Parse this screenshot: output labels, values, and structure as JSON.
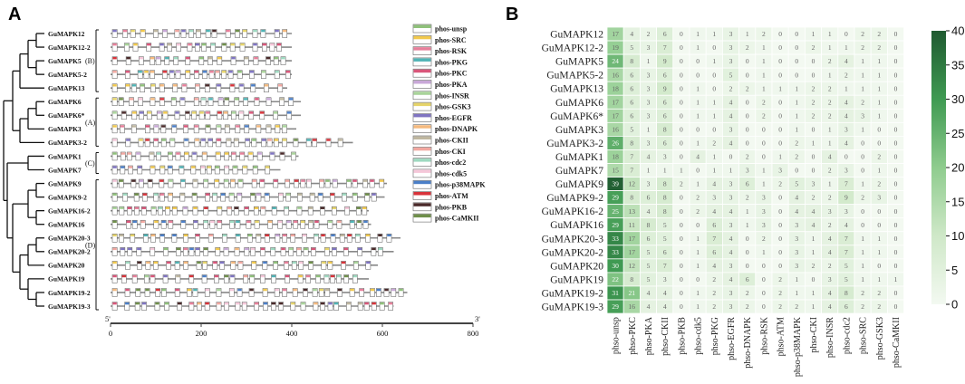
{
  "panel_a": {
    "letter": "A",
    "genes": [
      "GuMAPK12",
      "GuMAPK12-2",
      "GuMAPK5",
      "GuMAPK5-2",
      "GuMAPK13",
      "GuMAPK6",
      "GuMAPK6*",
      "GuMAPK3",
      "GuMAPK3-2",
      "GuMAPK1",
      "GuMAPK7",
      "GuMAPK9",
      "GuMAPK9-2",
      "GuMAPK16-2",
      "GuMAPK16",
      "GuMAPK20-3",
      "GuMAPK20-2",
      "GuMAPK20",
      "GuMAPK19",
      "GuMAPK19-2",
      "GuMAPK19-3"
    ],
    "lengths": [
      400,
      400,
      400,
      400,
      390,
      420,
      420,
      410,
      535,
      415,
      375,
      610,
      605,
      570,
      575,
      640,
      625,
      590,
      570,
      655,
      625
    ],
    "clades": [
      {
        "label": "(B)",
        "from": 0,
        "to": 4
      },
      {
        "label": "(A)",
        "from": 5,
        "to": 8
      },
      {
        "label": "(C)",
        "from": 9,
        "to": 10
      },
      {
        "label": "(D)",
        "from": 11,
        "to": 20
      }
    ],
    "legend": [
      {
        "label": "phos-unsp",
        "color": "#8fc17a"
      },
      {
        "label": "phos-SRC",
        "color": "#f2c94c"
      },
      {
        "label": "phos-RSK",
        "color": "#e77f9a"
      },
      {
        "label": "phos-PKG",
        "color": "#4fb3b5"
      },
      {
        "label": "phos-PKC",
        "color": "#d9567a"
      },
      {
        "label": "phos-PKA",
        "color": "#c9a8d8"
      },
      {
        "label": "phos-INSR",
        "color": "#a9d49a"
      },
      {
        "label": "phos-GSK3",
        "color": "#e6d46a"
      },
      {
        "label": "phos-EGFR",
        "color": "#7f74c2"
      },
      {
        "label": "phos-DNAPK",
        "color": "#f4b97e"
      },
      {
        "label": "phos-CKII",
        "color": "#bfb7a0"
      },
      {
        "label": "phos-CKI",
        "color": "#f2a7a0"
      },
      {
        "label": "phos-cdc2",
        "color": "#9ed9c0"
      },
      {
        "label": "phos-cdk5",
        "color": "#f5c7d9"
      },
      {
        "label": "phos-p38MAPK",
        "color": "#4b7fc8"
      },
      {
        "label": "phos-ATM",
        "color": "#d8333a"
      },
      {
        "label": "phos-PKB",
        "color": "#4a2a2a"
      },
      {
        "label": "phos-CaMKII",
        "color": "#6f8f4a"
      }
    ],
    "axis": {
      "start_label": "5'",
      "end_label": "3'",
      "ticks": [
        0,
        200,
        400,
        600,
        800
      ],
      "max": 800
    }
  },
  "chart_data": {
    "type": "heatmap",
    "panel_letter": "B",
    "rows": [
      "GuMAPK12",
      "GuMAPK12-2",
      "GuMAPK5",
      "GuMAPK5-2",
      "GuMAPK13",
      "GuMAPK6",
      "GuMAPK6*",
      "GuMAPK3",
      "GuMAPK3-2",
      "GuMAPK1",
      "GuMAPK7",
      "GuMAPK9",
      "GuMAPK9-2",
      "GuMAPK16-2",
      "GuMAPK16",
      "GuMAPK20-3",
      "GuMAPK20-2",
      "GuMAPK20",
      "GuMAPK19",
      "GuMAPK19-2",
      "GuMAPK19-3"
    ],
    "columns": [
      "phso-unsp",
      "phso-PKC",
      "phso-PKA",
      "phso-CKII",
      "phso-PKB",
      "phso-cdk5",
      "phso-PKG",
      "phso-EGFR",
      "phso-DNAPK",
      "phso-RSK",
      "phso-ATM",
      "phso-p38MAPK",
      "phso-CKI",
      "phso-INSR",
      "phso-cdc2",
      "phso-SRC",
      "phso-GSK3",
      "phso-CaMKII"
    ],
    "values": [
      [
        17,
        4,
        2,
        6,
        0,
        1,
        1,
        3,
        1,
        2,
        0,
        0,
        1,
        1,
        0,
        2,
        2,
        0
      ],
      [
        19,
        5,
        3,
        7,
        0,
        1,
        0,
        3,
        2,
        1,
        0,
        0,
        2,
        1,
        1,
        2,
        2,
        0
      ],
      [
        24,
        8,
        1,
        9,
        0,
        0,
        1,
        3,
        0,
        1,
        0,
        0,
        0,
        2,
        4,
        1,
        1,
        0
      ],
      [
        16,
        6,
        3,
        6,
        0,
        0,
        0,
        5,
        0,
        1,
        0,
        0,
        0,
        1,
        2,
        1,
        1,
        0
      ],
      [
        18,
        6,
        3,
        9,
        0,
        1,
        0,
        2,
        2,
        1,
        1,
        1,
        2,
        2,
        1,
        1,
        1,
        0
      ],
      [
        17,
        6,
        3,
        6,
        0,
        1,
        1,
        4,
        0,
        2,
        0,
        1,
        2,
        2,
        4,
        2,
        1,
        0
      ],
      [
        17,
        6,
        3,
        6,
        0,
        1,
        1,
        4,
        0,
        2,
        0,
        1,
        2,
        2,
        4,
        3,
        1,
        0
      ],
      [
        16,
        5,
        1,
        8,
        0,
        0,
        0,
        3,
        0,
        0,
        0,
        1,
        0,
        1,
        3,
        1,
        0,
        0
      ],
      [
        26,
        8,
        3,
        6,
        0,
        1,
        2,
        4,
        0,
        0,
        0,
        2,
        1,
        1,
        4,
        0,
        0,
        0
      ],
      [
        18,
        7,
        4,
        3,
        0,
        4,
        1,
        0,
        2,
        0,
        1,
        2,
        0,
        4,
        0,
        0,
        2,
        0
      ],
      [
        15,
        7,
        1,
        1,
        1,
        0,
        1,
        1,
        3,
        1,
        3,
        0,
        0,
        2,
        3,
        0,
        1,
        0
      ],
      [
        39,
        12,
        3,
        8,
        2,
        1,
        4,
        3,
        6,
        1,
        2,
        5,
        3,
        1,
        7,
        1,
        2,
        0
      ],
      [
        29,
        8,
        6,
        8,
        0,
        2,
        3,
        3,
        2,
        3,
        0,
        4,
        2,
        2,
        9,
        2,
        3,
        0
      ],
      [
        25,
        13,
        4,
        8,
        0,
        2,
        4,
        4,
        1,
        3,
        0,
        4,
        4,
        3,
        3,
        0,
        0,
        0
      ],
      [
        29,
        11,
        8,
        5,
        0,
        0,
        6,
        3,
        1,
        3,
        0,
        3,
        4,
        2,
        4,
        0,
        0,
        0
      ],
      [
        33,
        17,
        6,
        5,
        0,
        1,
        7,
        4,
        0,
        2,
        0,
        3,
        1,
        4,
        7,
        1,
        1,
        0
      ],
      [
        33,
        17,
        5,
        6,
        0,
        1,
        6,
        4,
        0,
        1,
        0,
        3,
        1,
        4,
        7,
        1,
        1,
        0
      ],
      [
        30,
        12,
        5,
        7,
        0,
        1,
        4,
        3,
        0,
        0,
        0,
        3,
        2,
        2,
        5,
        1,
        0,
        0
      ],
      [
        22,
        8,
        5,
        3,
        0,
        0,
        2,
        4,
        6,
        0,
        2,
        1,
        0,
        3,
        5,
        1,
        1,
        1
      ],
      [
        31,
        21,
        4,
        4,
        0,
        1,
        2,
        3,
        2,
        0,
        2,
        1,
        1,
        4,
        8,
        2,
        2,
        0
      ],
      [
        29,
        16,
        4,
        4,
        0,
        1,
        2,
        3,
        2,
        0,
        2,
        2,
        1,
        4,
        6,
        2,
        2,
        0
      ]
    ],
    "colorbar": {
      "min": 0,
      "max": 40,
      "ticks": [
        0,
        5,
        10,
        15,
        20,
        25,
        30,
        35,
        40
      ],
      "low_color": "#f3f9f1",
      "high_color": "#1f5a30"
    }
  }
}
